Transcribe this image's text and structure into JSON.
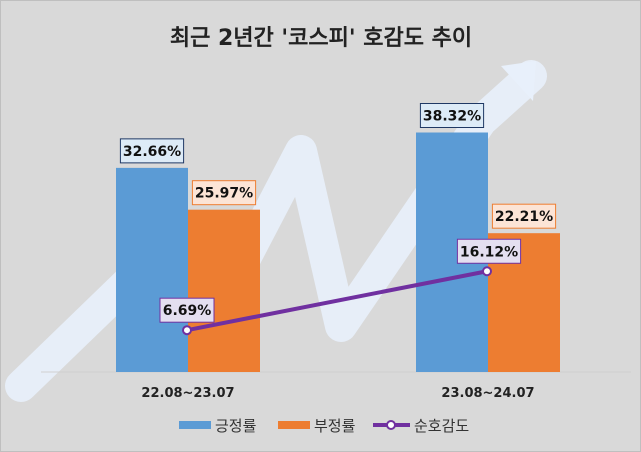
{
  "chart_data": {
    "type": "bar",
    "title": "최근 2년간 '코스피' 호감도 추이",
    "categories": [
      "22.08~23.07",
      "23.08~24.07"
    ],
    "series": [
      {
        "name": "긍정률",
        "kind": "bar",
        "color": "#5b9bd5",
        "label_bg": "#ddebf7",
        "label_border": "#1f3864",
        "values": [
          32.66,
          38.32
        ],
        "labels": [
          "32.66%",
          "38.32%"
        ]
      },
      {
        "name": "부정률",
        "kind": "bar",
        "color": "#ed7d31",
        "label_bg": "#fce4d6",
        "label_border": "#ed7d31",
        "values": [
          25.97,
          22.21
        ],
        "labels": [
          "25.97%",
          "22.21%"
        ]
      },
      {
        "name": "순호감도",
        "kind": "line",
        "color": "#7030a0",
        "label_bg": "#e4dff0",
        "label_border": "#7030a0",
        "values": [
          6.69,
          16.12
        ],
        "labels": [
          "6.69%",
          "16.12%"
        ]
      }
    ],
    "ylim": [
      0,
      40
    ],
    "grid": false,
    "legend": "bottom",
    "xlabel": "",
    "ylabel": ""
  }
}
